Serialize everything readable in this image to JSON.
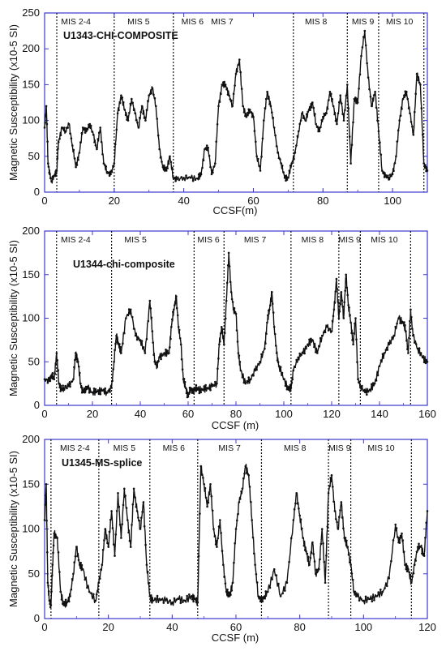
{
  "chart_data": [
    {
      "type": "line",
      "title": "U1343-CHI-COMPOSITE",
      "xlabel": "CCSF(m)",
      "ylabel": "Magnetic Susceptibility (x10-5 SI)",
      "xlim": [
        0,
        110
      ],
      "ylim": [
        0,
        250
      ],
      "xticks": [
        0,
        20,
        40,
        60,
        80,
        100
      ],
      "yticks": [
        0,
        50,
        100,
        150,
        200,
        250
      ],
      "grid": false,
      "colors": {
        "axis": "#3a3ad0",
        "series": "#111111"
      },
      "stages": [
        {
          "label": "MIS 2-4",
          "start": 0,
          "end": 3.5
        },
        {
          "label": "MIS 5",
          "start": 3.5,
          "end": 20
        },
        {
          "label": "MIS 6",
          "start": 20,
          "end": 37
        },
        {
          "label": "MIS 7",
          "start": 37,
          "end": 71.5
        },
        {
          "label": "MIS 8",
          "start": 71.5,
          "end": 87
        },
        {
          "label": "MIS 9",
          "start": 87,
          "end": 96
        },
        {
          "label": "MIS 10",
          "start": 96,
          "end": 109
        }
      ],
      "mis_labels": [
        {
          "text": "MIS 2-4",
          "x": 9
        },
        {
          "text": "MIS 5",
          "x": 27
        },
        {
          "text": "MIS 6",
          "x": 42.5
        },
        {
          "text": "MIS 7",
          "x": 51
        },
        {
          "text": "MIS 8",
          "x": 78
        },
        {
          "text": "MIS 9",
          "x": 91.5
        },
        {
          "text": "MIS 10",
          "x": 102
        }
      ],
      "boundaries": [
        3.5,
        20,
        37,
        71.5,
        87,
        96,
        109
      ],
      "series": [
        {
          "x": [
            0,
            0.5,
            1,
            1.5,
            2,
            3,
            3.5,
            4,
            5,
            6,
            7,
            8,
            9,
            10,
            11,
            12,
            13,
            14,
            15,
            16,
            17,
            18,
            19,
            20,
            21,
            22,
            23,
            24,
            25,
            26,
            27,
            28,
            29,
            30,
            31,
            32,
            33,
            34,
            35,
            36,
            37,
            38,
            40,
            42,
            44,
            45,
            46,
            47,
            48,
            49,
            50,
            51,
            52,
            53,
            54,
            55,
            56,
            57,
            58,
            59,
            60,
            61,
            62,
            63,
            64,
            65,
            66,
            67,
            68,
            69,
            70,
            71,
            72,
            73,
            74,
            75,
            76,
            77,
            78,
            79,
            80,
            81,
            82,
            83,
            84,
            85,
            86,
            87,
            88,
            89,
            90,
            91,
            92,
            93,
            94,
            95,
            96,
            97,
            98,
            99,
            100,
            101,
            102,
            103,
            104,
            105,
            106,
            107,
            108,
            109,
            110
          ],
          "y": [
            90,
            120,
            40,
            25,
            15,
            25,
            30,
            70,
            90,
            85,
            95,
            65,
            35,
            55,
            90,
            85,
            95,
            80,
            60,
            90,
            40,
            28,
            25,
            40,
            110,
            135,
            115,
            100,
            130,
            110,
            90,
            120,
            100,
            135,
            145,
            120,
            60,
            35,
            30,
            50,
            20,
            18,
            20,
            20,
            19,
            25,
            60,
            62,
            25,
            40,
            120,
            150,
            150,
            135,
            120,
            165,
            185,
            120,
            105,
            115,
            105,
            50,
            30,
            100,
            140,
            120,
            90,
            55,
            40,
            20,
            20,
            40,
            55,
            85,
            110,
            100,
            115,
            125,
            95,
            85,
            105,
            110,
            140,
            120,
            95,
            135,
            100,
            150,
            40,
            130,
            125,
            190,
            225,
            160,
            120,
            140,
            85,
            30,
            22,
            20,
            25,
            50,
            100,
            130,
            140,
            110,
            80,
            165,
            150,
            40,
            30
          ]
        }
      ]
    },
    {
      "type": "line",
      "title": "U1344-chi-composite",
      "xlabel": "CCSF (m)",
      "ylabel": "Magnetic Susceptibility (x10-5 SI)",
      "xlim": [
        0,
        160
      ],
      "ylim": [
        0,
        200
      ],
      "xticks": [
        0,
        20,
        40,
        60,
        80,
        100,
        120,
        140,
        160
      ],
      "yticks": [
        0,
        50,
        100,
        150,
        200
      ],
      "grid": false,
      "colors": {
        "axis": "#3a3ad0",
        "series": "#111111"
      },
      "stages": [
        {
          "label": "MIS 2-4",
          "start": 0,
          "end": 5
        },
        {
          "label": "MIS 5",
          "start": 5,
          "end": 28
        },
        {
          "label": "MIS 6",
          "start": 28,
          "end": 62.5
        },
        {
          "label": "MIS 7",
          "start": 62.5,
          "end": 75
        },
        {
          "label": "MIS 8",
          "start": 75,
          "end": 103
        },
        {
          "label": "MIS 9",
          "start": 103,
          "end": 123
        },
        {
          "label": "MIS 10",
          "start": 123,
          "end": 132
        },
        {
          "label": "",
          "start": 132,
          "end": 153
        }
      ],
      "mis_labels": [
        {
          "text": "MIS 2-4",
          "x": 13
        },
        {
          "text": "MIS 5",
          "x": 38
        },
        {
          "text": "MIS 6",
          "x": 68.5
        },
        {
          "text": "MIS 7",
          "x": 88
        },
        {
          "text": "MIS 8",
          "x": 112
        },
        {
          "text": "MIS 9",
          "x": 127.5
        },
        {
          "text": "MIS 10",
          "x": 142
        }
      ],
      "boundaries": [
        5,
        28,
        62.5,
        75,
        103,
        123,
        132,
        153
      ],
      "series": [
        {
          "x": [
            0,
            2,
            3,
            4,
            5,
            6,
            7,
            8,
            10,
            12,
            13,
            14,
            15,
            16,
            17,
            18,
            20,
            22,
            24,
            26,
            28,
            29,
            30,
            31,
            32,
            34,
            36,
            38,
            40,
            42,
            44,
            45,
            46,
            47,
            48,
            50,
            52,
            53,
            54,
            55,
            56,
            57,
            58,
            59,
            60,
            61,
            62,
            63,
            64,
            66,
            68,
            70,
            72,
            73,
            74,
            75,
            76,
            77,
            78,
            79,
            80,
            81,
            82,
            84,
            86,
            88,
            90,
            92,
            93,
            94,
            95,
            96,
            97,
            98,
            100,
            102,
            103,
            104,
            106,
            108,
            110,
            112,
            114,
            116,
            118,
            120,
            121,
            122,
            123,
            124,
            125,
            126,
            127,
            128,
            129,
            130,
            131,
            132,
            134,
            136,
            138,
            140,
            142,
            144,
            146,
            148,
            150,
            151,
            152,
            153,
            154,
            156,
            158,
            160
          ],
          "y": [
            30,
            28,
            35,
            30,
            60,
            25,
            18,
            20,
            22,
            30,
            60,
            50,
            25,
            15,
            18,
            20,
            15,
            16,
            17,
            15,
            20,
            50,
            80,
            70,
            60,
            100,
            110,
            80,
            75,
            60,
            120,
            85,
            50,
            45,
            55,
            60,
            60,
            90,
            110,
            125,
            90,
            70,
            30,
            20,
            10,
            20,
            15,
            20,
            18,
            18,
            20,
            22,
            25,
            70,
            90,
            70,
            120,
            175,
            130,
            110,
            105,
            60,
            40,
            25,
            30,
            40,
            50,
            65,
            95,
            110,
            130,
            90,
            60,
            45,
            30,
            18,
            20,
            40,
            55,
            60,
            70,
            75,
            60,
            80,
            90,
            85,
            110,
            145,
            100,
            130,
            100,
            150,
            115,
            95,
            70,
            100,
            30,
            22,
            15,
            18,
            25,
            45,
            60,
            70,
            80,
            100,
            95,
            85,
            60,
            110,
            80,
            65,
            55,
            50
          ]
        }
      ]
    },
    {
      "type": "line",
      "title": "U1345-MS-splice",
      "xlabel": "CCSF (m)",
      "ylabel": "Magnetic Susceptibility (x10-5 SI)",
      "xlim": [
        0,
        120
      ],
      "ylim": [
        0,
        200
      ],
      "xticks": [
        0,
        20,
        40,
        60,
        80,
        100,
        120
      ],
      "yticks": [
        0,
        50,
        100,
        150,
        200
      ],
      "grid": false,
      "colors": {
        "axis": "#3a3ad0",
        "series": "#111111"
      },
      "stages": [
        {
          "label": "MIS 2-4",
          "start": 2,
          "end": 17
        },
        {
          "label": "MIS 5",
          "start": 17,
          "end": 33
        },
        {
          "label": "MIS 6",
          "start": 33,
          "end": 48
        },
        {
          "label": "MIS 7",
          "start": 48,
          "end": 68
        },
        {
          "label": "MIS 8",
          "start": 68,
          "end": 89
        },
        {
          "label": "MIS 9",
          "start": 89,
          "end": 96
        },
        {
          "label": "MIS 10",
          "start": 96,
          "end": 115
        }
      ],
      "mis_labels": [
        {
          "text": "MIS 2-4",
          "x": 9.5
        },
        {
          "text": "MIS 5",
          "x": 25
        },
        {
          "text": "MIS 6",
          "x": 40.5
        },
        {
          "text": "MIS 7",
          "x": 58
        },
        {
          "text": "MIS 8",
          "x": 78.5
        },
        {
          "text": "MIS 9",
          "x": 92.5
        },
        {
          "text": "MIS 10",
          "x": 105.5
        }
      ],
      "boundaries": [
        2,
        17,
        33,
        48,
        68,
        89,
        96,
        115
      ],
      "series": [
        {
          "x": [
            0,
            0.5,
            1,
            1.5,
            2,
            2.5,
            3,
            4,
            5,
            6,
            7,
            8,
            9,
            10,
            11,
            12,
            14,
            16,
            17,
            18,
            19,
            20,
            21,
            22,
            23,
            24,
            25,
            26,
            27,
            28,
            29,
            30,
            31,
            32,
            33,
            34,
            36,
            38,
            40,
            42,
            44,
            46,
            47,
            48,
            49,
            50,
            51,
            52,
            53,
            54,
            55,
            56,
            57,
            58,
            59,
            60,
            61,
            62,
            63,
            64,
            65,
            66,
            67,
            68,
            69,
            70,
            72,
            74,
            76,
            78,
            79,
            80,
            81,
            82,
            83,
            84,
            85,
            86,
            87,
            88,
            89,
            90,
            91,
            92,
            93,
            94,
            95,
            96,
            97,
            98,
            100,
            102,
            104,
            106,
            108,
            110,
            111,
            112,
            113,
            114,
            115,
            116,
            117,
            118,
            119,
            120
          ],
          "y": [
            110,
            150,
            40,
            20,
            15,
            60,
            95,
            90,
            30,
            15,
            18,
            25,
            50,
            80,
            60,
            55,
            30,
            20,
            40,
            60,
            100,
            80,
            120,
            70,
            140,
            90,
            145,
            110,
            80,
            145,
            120,
            100,
            130,
            60,
            25,
            20,
            22,
            20,
            18,
            22,
            20,
            25,
            22,
            18,
            170,
            150,
            125,
            150,
            100,
            80,
            110,
            60,
            30,
            25,
            40,
            100,
            130,
            145,
            170,
            160,
            110,
            60,
            25,
            20,
            25,
            30,
            55,
            25,
            40,
            110,
            140,
            115,
            90,
            75,
            60,
            85,
            50,
            55,
            100,
            40,
            140,
            160,
            120,
            100,
            130,
            90,
            80,
            60,
            30,
            25,
            20,
            22,
            25,
            30,
            45,
            105,
            85,
            95,
            60,
            55,
            40,
            60,
            80,
            80,
            70,
            120
          ]
        }
      ]
    }
  ]
}
